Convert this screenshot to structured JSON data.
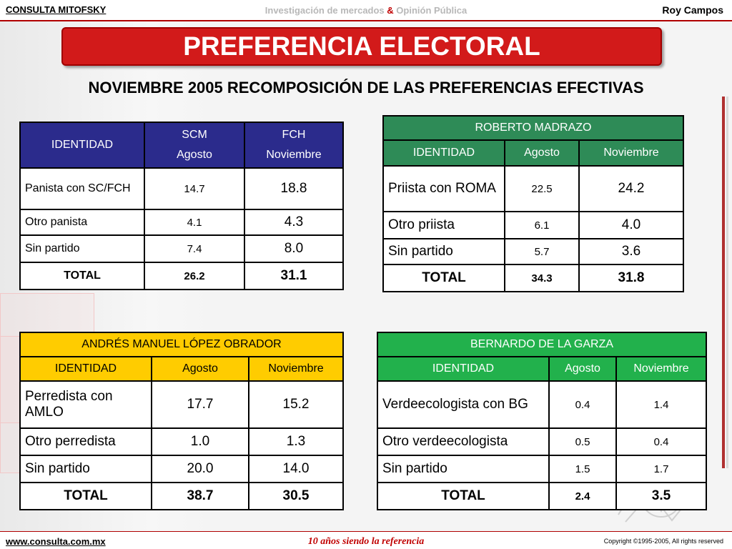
{
  "header": {
    "brand": "CONSULTA MITOFSKY",
    "tagline_part1": "Investigación de mercados ",
    "tagline_amp": "&",
    "tagline_part2": " Opinión Pública",
    "author": "Roy Campos"
  },
  "title": "PREFERENCIA ELECTORAL",
  "subtitle": "NOVIEMBRE 2005 RECOMPOSICIÓN DE LAS PREFERENCIAS EFECTIVAS",
  "colors": {
    "pan_header": "#2b2b8c",
    "pri_header": "#2e8b57",
    "prd_header": "#ffcc00",
    "pvem_header": "#22b14c",
    "title_red": "#d21a1a"
  },
  "table_pan": {
    "col1": "IDENTIDAD",
    "col2_line1": "SCM",
    "col2_line2": "Agosto",
    "col3_line1": "FCH",
    "col3_line2": "Noviembre",
    "rows": [
      {
        "label": "Panista con SC/FCH",
        "a": "14.7",
        "b": "18.8"
      },
      {
        "label": "Otro panista",
        "a": "4.1",
        "b": "4.3"
      },
      {
        "label": "Sin partido",
        "a": "7.4",
        "b": "8.0"
      }
    ],
    "total_label": "TOTAL",
    "total_a": "26.2",
    "total_b": "31.1"
  },
  "table_pri": {
    "name": "ROBERTO MADRAZO",
    "col1": "IDENTIDAD",
    "col2": "Agosto",
    "col3": "Noviembre",
    "rows": [
      {
        "label": "Priista con ROMA",
        "a": "22.5",
        "b": "24.2"
      },
      {
        "label": "Otro priista",
        "a": "6.1",
        "b": "4.0"
      },
      {
        "label": "Sin partido",
        "a": "5.7",
        "b": "3.6"
      }
    ],
    "total_label": "TOTAL",
    "total_a": "34.3",
    "total_b": "31.8"
  },
  "table_prd": {
    "name": "ANDRÉS MANUEL LÓPEZ OBRADOR",
    "col1": "IDENTIDAD",
    "col2": "Agosto",
    "col3": "Noviembre",
    "rows": [
      {
        "label": "Perredista con AMLO",
        "a": "17.7",
        "b": "15.2"
      },
      {
        "label": "Otro perredista",
        "a": "1.0",
        "b": "1.3"
      },
      {
        "label": "Sin partido",
        "a": "20.0",
        "b": "14.0"
      }
    ],
    "total_label": "TOTAL",
    "total_a": "38.7",
    "total_b": "30.5"
  },
  "table_pvem": {
    "name": "BERNARDO DE LA GARZA",
    "col1": "IDENTIDAD",
    "col2": "Agosto",
    "col3": "Noviembre",
    "rows": [
      {
        "label": "Verdeecologista con BG",
        "a": "0.4",
        "b": "1.4"
      },
      {
        "label": "Otro verdeecologista",
        "a": "0.5",
        "b": "0.4"
      },
      {
        "label": "Sin partido",
        "a": "1.5",
        "b": "1.7"
      }
    ],
    "total_label": "TOTAL",
    "total_a": "2.4",
    "total_b": "3.5"
  },
  "footer": {
    "url": "www.consulta.com.mx",
    "slogan": "10 años siendo la referencia",
    "copyright": "Copyright ©1995-2005, All rights reserved"
  }
}
